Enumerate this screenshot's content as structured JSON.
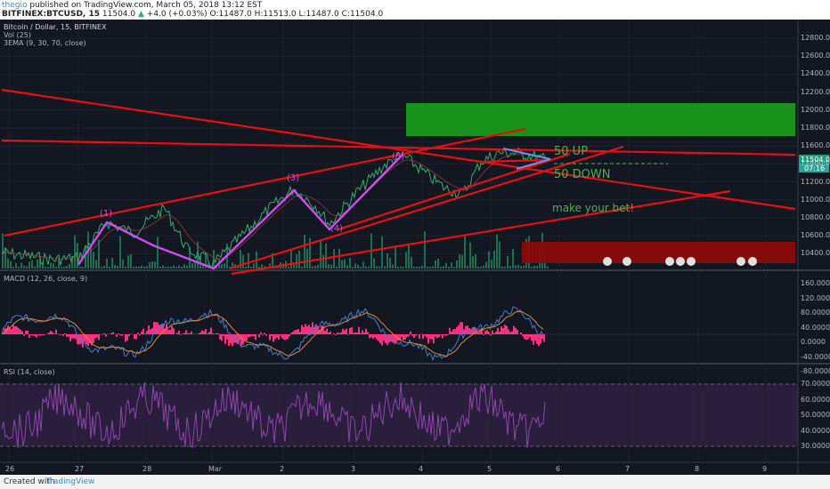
{
  "header": {
    "author": "thegio",
    "published": "published on TradingView.com, March 05, 2018 13:12 EST",
    "symbol": "BITFINEX:BTCUSD, 15",
    "last": "11504.0",
    "change_up_label": "▲",
    "change": "+4.0 (+0.03%)",
    "open": "O:11487.0",
    "high": "H:11513.0",
    "low": "L:11487.0",
    "close": "C:11504.0"
  },
  "chart_labels": {
    "title": "Bitcoin / Dollar, 15, BITFINEX",
    "vol": "Vol (25)",
    "ema": "3EMA (9, 30, 70, close)",
    "macd": "MACD (12, 26, close, 9)",
    "rsi": "RSI (14, close)",
    "wave_labels": [
      "(1)",
      "(3)",
      "(4)",
      "(5)"
    ],
    "annotations": {
      "up": "50 UP",
      "down": "50 DOWN",
      "bet": "make your bet!"
    }
  },
  "price_axis": [
    "12800.0",
    "12600.0",
    "12400.0",
    "12200.0",
    "12000.0",
    "11800.0",
    "11600.0",
    "11400.0",
    "11200.0",
    "11000.0",
    "10800.0",
    "10600.0",
    "10400.0"
  ],
  "price_tags": {
    "last": "11504.0",
    "timer": "07:16"
  },
  "macd_axis": [
    "160.0000",
    "120.0000",
    "80.0000",
    "40.0000",
    "0.0000",
    "-40.0000",
    "-80.0000"
  ],
  "rsi_axis": [
    "70.0000",
    "60.0000",
    "50.0000",
    "40.0000",
    "30.0000"
  ],
  "time_axis": [
    "26",
    "27",
    "28",
    "Mar",
    "2",
    "3",
    "4",
    "5",
    "6",
    "7",
    "8",
    "9"
  ],
  "colors": {
    "background": "#131722",
    "trendline": "#e61010",
    "wave": "#d14bf2",
    "green_zone": "#1aa01a",
    "red_zone": "#8b0a0a",
    "annotation": "#4caf50",
    "rsi_band": "#2a1f3d",
    "rsi_line": "#8e44ad",
    "macd_hist": "#ff2e7e",
    "macd_line": "#3f7dd6",
    "signal_line": "#e08a2f"
  },
  "footer": {
    "created_with": "Created with",
    "brand": "TradingView"
  }
}
